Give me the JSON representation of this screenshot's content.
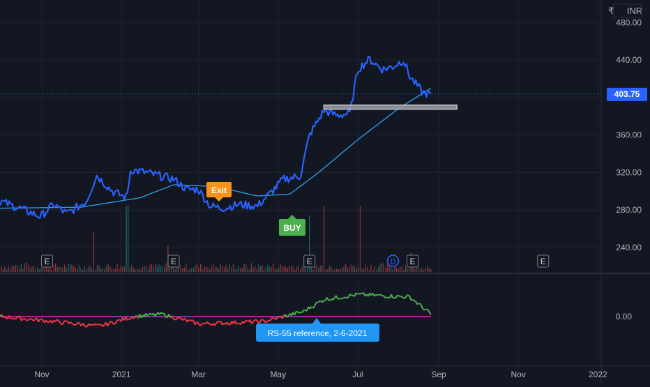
{
  "currency_label": "INR",
  "currency_prefix": "₹",
  "colors": {
    "background": "#131722",
    "grid": "#1f2330",
    "axis_text": "#b2b5be",
    "price_line": "#2962ff",
    "sma_line": "#2ca3f0",
    "volume": "#ef5350",
    "volume_up": "#26a69a",
    "rs_positive": "#4caf50",
    "rs_negative": "#f23645",
    "reference_line": "#9c27b0",
    "current_price_bg": "#2962ff",
    "exit_marker": "#f7931a",
    "buy_marker": "#4caf50",
    "callout": "#2196f3",
    "zone_border": "#d1d4dc"
  },
  "chart_data": {
    "type": "line",
    "x_axis_ticks": [
      "Nov",
      "2021",
      "Mar",
      "May",
      "Jul",
      "Sep",
      "Nov",
      "2022"
    ],
    "y_axis_ticks": [
      "480.00",
      "440.00",
      "400.00",
      "360.00",
      "320.00",
      "280.00",
      "240.00"
    ],
    "ylim": [
      214,
      504
    ],
    "current_price": "403.75",
    "series": [],
    "price_points": [
      [
        "2020-10-01",
        289
      ],
      [
        "2020-10-15",
        282
      ],
      [
        "2020-10-31",
        273
      ],
      [
        "2020-11-10",
        286
      ],
      [
        "2020-11-20",
        276
      ],
      [
        "2020-12-05",
        289
      ],
      [
        "2020-12-13",
        317
      ],
      [
        "2020-12-25",
        300
      ],
      [
        "2021-01-05",
        293
      ],
      [
        "2021-01-08",
        323
      ],
      [
        "2021-01-20",
        320
      ],
      [
        "2021-02-01",
        316
      ],
      [
        "2021-02-10",
        313
      ],
      [
        "2021-02-20",
        302
      ],
      [
        "2021-03-01",
        302
      ],
      [
        "2021-03-10",
        284
      ],
      [
        "2021-03-20",
        282
      ],
      [
        "2021-04-01",
        286
      ],
      [
        "2021-04-15",
        284
      ],
      [
        "2021-04-25",
        298
      ],
      [
        "2021-05-05",
        313
      ],
      [
        "2021-05-18",
        316
      ],
      [
        "2021-05-25",
        360
      ],
      [
        "2021-06-05",
        386
      ],
      [
        "2021-06-15",
        381
      ],
      [
        "2021-06-25",
        383
      ],
      [
        "2021-07-01",
        430
      ],
      [
        "2021-07-10",
        441
      ],
      [
        "2021-07-20",
        430
      ],
      [
        "2021-07-28",
        433
      ],
      [
        "2021-08-05",
        440
      ],
      [
        "2021-08-10",
        422
      ],
      [
        "2021-08-20",
        405
      ],
      [
        "2021-08-26",
        403.75
      ]
    ],
    "sma_points": [
      [
        "2020-10-01",
        282
      ],
      [
        "2020-12-01",
        283
      ],
      [
        "2021-01-15",
        293
      ],
      [
        "2021-02-10",
        307
      ],
      [
        "2021-03-15",
        305
      ],
      [
        "2021-04-15",
        295
      ],
      [
        "2021-05-10",
        297
      ],
      [
        "2021-06-01",
        320
      ],
      [
        "2021-07-01",
        355
      ],
      [
        "2021-08-01",
        388
      ],
      [
        "2021-08-26",
        410
      ]
    ],
    "volume_points": [
      [
        "2020-10-20",
        0.15
      ],
      [
        "2020-12-10",
        0.6
      ],
      [
        "2021-01-05",
        1.0
      ],
      [
        "2021-02-05",
        0.4
      ],
      [
        "2021-05-25",
        0.85
      ],
      [
        "2021-06-05",
        1.0
      ],
      [
        "2021-07-02",
        1.0
      ],
      [
        "2021-08-10",
        0.3
      ]
    ],
    "earnings_markers": [
      "E",
      "E",
      "E",
      "E",
      "E"
    ],
    "dividend_marker": "D",
    "rs_points": [
      [
        "2020-10-01",
        0.0
      ],
      [
        "2020-11-10",
        -0.1
      ],
      [
        "2020-12-15",
        -0.2
      ],
      [
        "2021-01-10",
        0.0
      ],
      [
        "2021-02-01",
        0.05
      ],
      [
        "2021-03-01",
        -0.15
      ],
      [
        "2021-04-20",
        -0.1
      ],
      [
        "2021-05-20",
        0.1
      ],
      [
        "2021-06-05",
        0.35
      ],
      [
        "2021-07-01",
        0.45
      ],
      [
        "2021-08-10",
        0.4
      ],
      [
        "2021-08-26",
        0.05
      ]
    ],
    "rs_tick": "0.00",
    "annotations": {
      "exit_label": "Exit",
      "buy_label": "BUY",
      "callout_text": "RS-55 reference, 2-6-2021"
    }
  }
}
